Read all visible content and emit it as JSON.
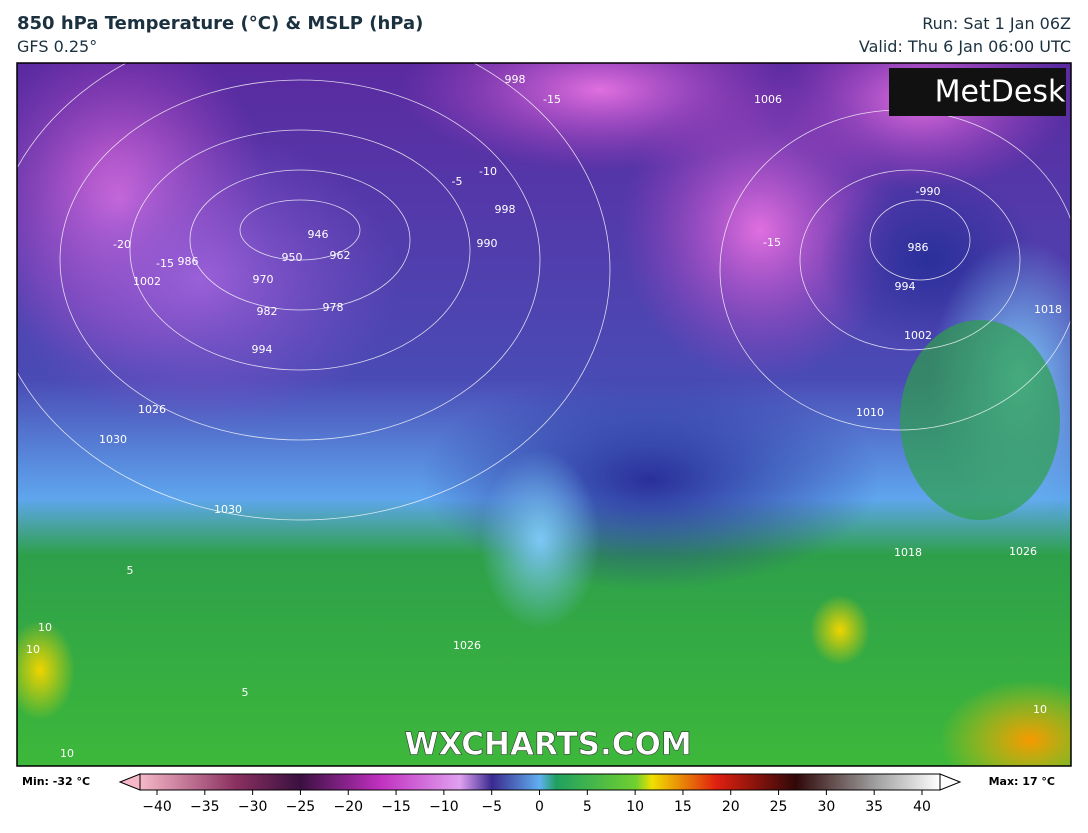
{
  "header": {
    "title": "850 hPa Temperature (°C) & MSLP (hPa)",
    "subtitle": "GFS 0.25°",
    "run": "Run: Sat 1 Jan 06Z",
    "valid": "Valid: Thu 6 Jan 06:00 UTC"
  },
  "logo": "MetDesk",
  "watermark": "WXCHARTS.COM",
  "contour_labels": [
    "998",
    "-15",
    "1006",
    "-990",
    "986",
    "994",
    "1002",
    "1010",
    "1018",
    "978",
    "970",
    "982",
    "994",
    "962",
    "950",
    "946",
    "1026",
    "1030",
    "-20",
    "-15",
    "986",
    "1002",
    "10",
    "10",
    "10",
    "10",
    "5",
    "5",
    "1026",
    "1026",
    "1018",
    "-10",
    "998",
    "990",
    "-15",
    "1030",
    "-5"
  ],
  "colorbar": {
    "min_label": "Min: -32 °C",
    "max_label": "Max: 17 °C",
    "ticks": [
      {
        "value": -40,
        "label": "−40"
      },
      {
        "value": -35,
        "label": "−35"
      },
      {
        "value": -30,
        "label": "−30"
      },
      {
        "value": -25,
        "label": "−25"
      },
      {
        "value": -20,
        "label": "−20"
      },
      {
        "value": -15,
        "label": "−15"
      },
      {
        "value": -10,
        "label": "−10"
      },
      {
        "value": -5,
        "label": "−5"
      },
      0,
      5,
      10,
      15,
      20,
      25,
      30,
      35,
      40
    ]
  }
}
